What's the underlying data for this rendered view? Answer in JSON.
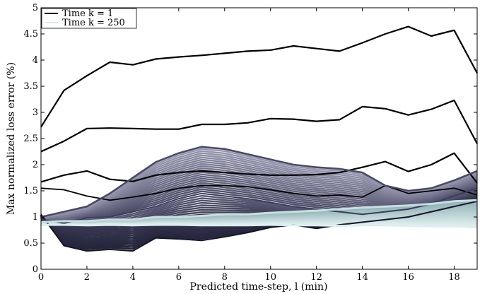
{
  "chart_data": {
    "type": "line",
    "title": "",
    "xlabel": "Predicted time-step, l (min)",
    "ylabel": "Max normalized loss error (%)",
    "xlim": [
      0,
      19
    ],
    "ylim": [
      0,
      5
    ],
    "x_ticks": [
      "0",
      "2",
      "4",
      "6",
      "8",
      "10",
      "12",
      "14",
      "16",
      "18"
    ],
    "y_ticks": [
      "0",
      "0.5",
      "1",
      "1.5",
      "2",
      "2.5",
      "3",
      "3.5",
      "4",
      "4.5",
      "5"
    ],
    "grid": false,
    "legend": {
      "placement": "top-left",
      "entries": [
        {
          "label": "Time k = 1",
          "color": "#000000"
        },
        {
          "label": "Time k = 250",
          "color": "#d8ecec"
        }
      ]
    },
    "x": [
      0,
      1,
      2,
      3,
      4,
      5,
      6,
      7,
      8,
      9,
      10,
      11,
      12,
      13,
      14,
      15,
      16,
      17,
      18,
      19
    ],
    "series": [
      {
        "values": [
          2.72,
          3.42,
          3.7,
          3.96,
          3.91,
          4.02,
          4.06,
          4.09,
          4.13,
          4.17,
          4.19,
          4.27,
          4.22,
          4.17,
          4.33,
          4.5,
          4.64,
          4.46,
          4.57,
          3.75
        ]
      },
      {
        "values": [
          2.25,
          2.45,
          2.69,
          2.7,
          2.69,
          2.68,
          2.68,
          2.77,
          2.77,
          2.8,
          2.88,
          2.87,
          2.83,
          2.86,
          3.11,
          3.07,
          2.95,
          3.06,
          3.23,
          2.4
        ]
      },
      {
        "values": [
          1.67,
          1.8,
          1.88,
          1.72,
          1.68,
          1.8,
          1.85,
          1.88,
          1.85,
          1.82,
          1.8,
          1.8,
          1.81,
          1.85,
          1.95,
          2.06,
          1.87,
          2.0,
          2.22,
          1.65
        ]
      },
      {
        "values": [
          1.55,
          1.52,
          1.4,
          1.32,
          1.38,
          1.45,
          1.55,
          1.6,
          1.6,
          1.58,
          1.52,
          1.45,
          1.4,
          1.42,
          1.38,
          1.6,
          1.45,
          1.5,
          1.55,
          1.42
        ]
      },
      {
        "values": [
          1.05,
          0.45,
          0.35,
          0.38,
          0.35,
          0.6,
          0.58,
          0.55,
          0.62,
          0.7,
          0.8,
          0.85,
          0.78,
          0.85,
          0.9,
          0.95,
          1.0,
          1.1,
          1.2,
          1.3
        ]
      },
      {
        "values": [
          1.0,
          1.1,
          1.2,
          1.45,
          1.75,
          2.05,
          2.22,
          2.34,
          2.3,
          2.2,
          2.1,
          2.0,
          1.95,
          1.92,
          1.85,
          1.6,
          1.5,
          1.55,
          1.7,
          1.88
        ]
      },
      {
        "values": [
          0.95,
          0.88,
          0.98,
          1.0,
          1.1,
          1.2,
          1.35,
          1.45,
          1.4,
          1.35,
          1.28,
          1.2,
          1.15,
          1.1,
          1.05,
          1.1,
          1.15,
          1.25,
          1.4,
          1.55
        ]
      },
      {
        "values": [
          0.9,
          0.92,
          0.92,
          0.95,
          0.95,
          1.0,
          1.0,
          1.02,
          1.05,
          1.05,
          1.08,
          1.1,
          1.12,
          1.15,
          1.18,
          1.2,
          1.22,
          1.25,
          1.3,
          1.32
        ]
      },
      {
        "values": [
          0.85,
          0.85,
          0.84,
          0.85,
          0.84,
          0.85,
          0.85,
          0.84,
          0.84,
          0.84,
          0.85,
          0.84,
          0.84,
          0.83,
          0.84,
          0.84,
          0.83,
          0.82,
          0.82,
          0.8
        ]
      }
    ]
  }
}
